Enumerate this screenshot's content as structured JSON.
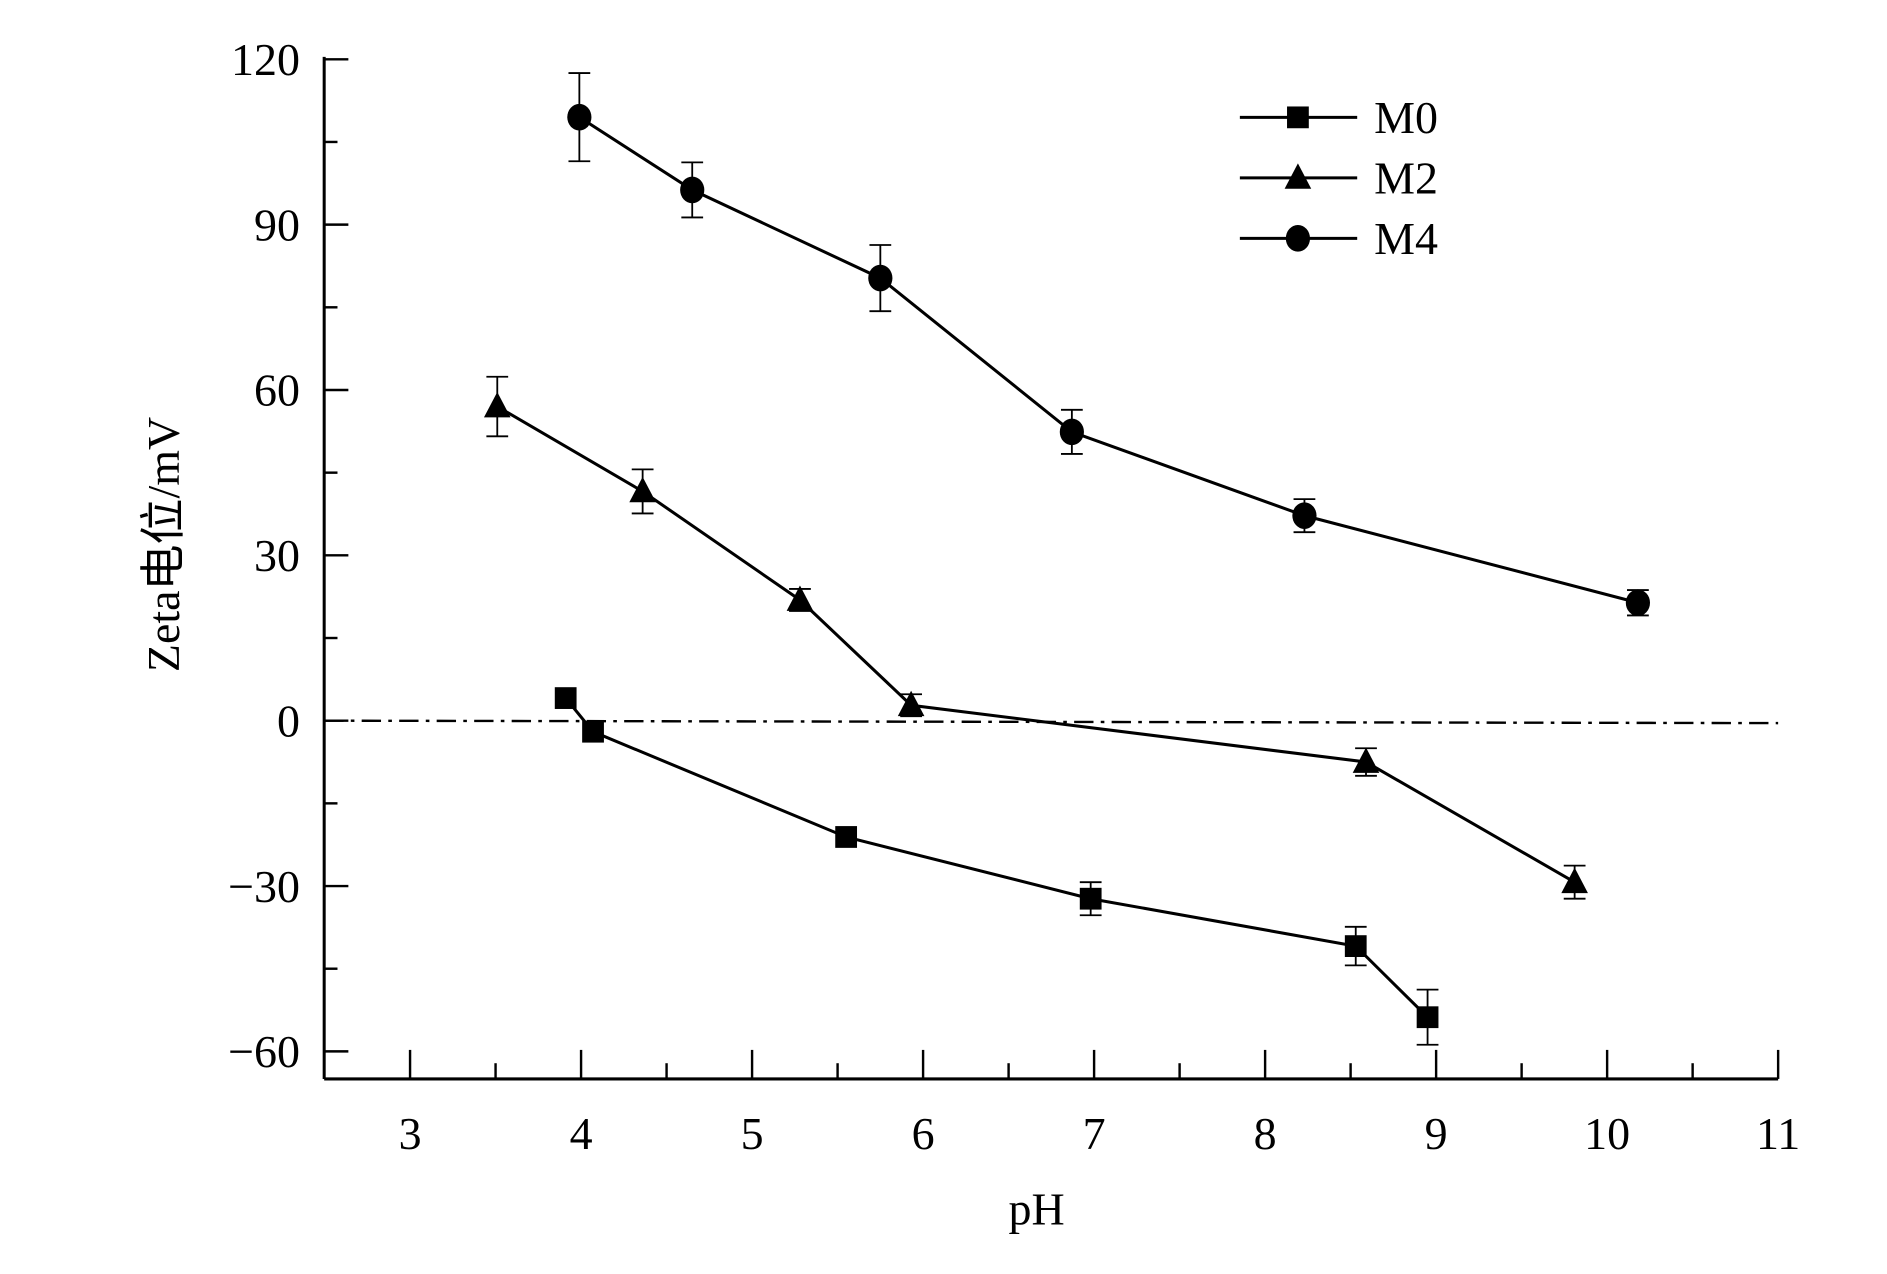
{
  "chart_data": {
    "type": "line",
    "title": "",
    "xlabel": "pH",
    "ylabel": "Zeta电位/mV",
    "xlim": [
      2.5,
      11
    ],
    "ylim": [
      -65,
      120
    ],
    "x_ticks": [
      3,
      4,
      5,
      6,
      7,
      8,
      9,
      10,
      11
    ],
    "y_ticks": [
      -60,
      -30,
      0,
      30,
      60,
      90,
      120
    ],
    "x_tick_labels": [
      "3",
      "4",
      "5",
      "6",
      "7",
      "8",
      "9",
      "10",
      "11"
    ],
    "y_tick_labels": [
      "−60",
      "−30",
      "0",
      "30",
      "60",
      "90",
      "120"
    ],
    "grid": false,
    "zero_reference_line": "dash-dot",
    "legend_position": "top-right",
    "series": [
      {
        "name": "M0",
        "marker": "square",
        "x": [
          3.91,
          4.07,
          5.55,
          6.98,
          8.53,
          8.95
        ],
        "y": [
          4.1,
          -2.0,
          -21.1,
          -32.3,
          -40.9,
          -53.8
        ],
        "error": [
          0,
          0,
          0,
          3,
          3.5,
          5
        ]
      },
      {
        "name": "M2",
        "marker": "triangle",
        "x": [
          3.51,
          4.36,
          5.28,
          5.93,
          8.59,
          9.81
        ],
        "y": [
          57.0,
          41.6,
          21.9,
          2.8,
          -7.5,
          -29.3
        ],
        "error": [
          5.4,
          4,
          2,
          2,
          2.5,
          3
        ]
      },
      {
        "name": "M4",
        "marker": "circle",
        "x": [
          3.99,
          4.65,
          5.75,
          6.87,
          8.23,
          10.18
        ],
        "y": [
          109.5,
          96.3,
          80.3,
          52.4,
          37.2,
          21.4
        ],
        "error": [
          8,
          5,
          6,
          4,
          3,
          2.3
        ]
      }
    ]
  }
}
